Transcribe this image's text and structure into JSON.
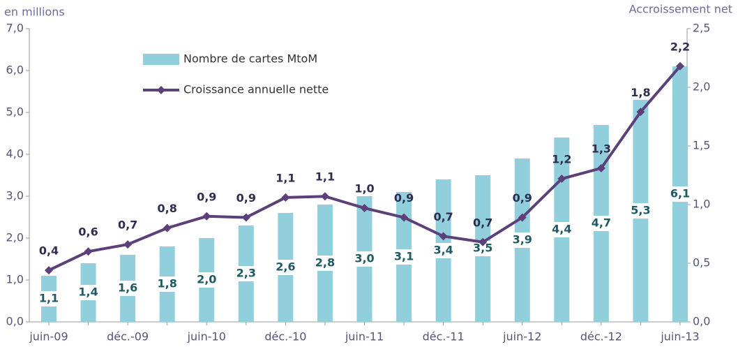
{
  "chart_data": {
    "type": "bar-line",
    "y_label": "en millions",
    "y2_label": "Accroissement net",
    "categories": [
      "juin-09",
      null,
      "déc.-09",
      null,
      "juin-10",
      null,
      "déc.-10",
      null,
      "juin-11",
      null,
      "déc.-11",
      null,
      "juin-12",
      null,
      "déc.-12",
      null,
      "juin-13"
    ],
    "series": [
      {
        "name": "Nombre de cartes MtoM",
        "type": "bar",
        "color": "#92cfdd",
        "values": [
          1.1,
          1.4,
          1.6,
          1.8,
          2.0,
          2.3,
          2.6,
          2.8,
          3.0,
          3.1,
          3.4,
          3.5,
          3.9,
          4.4,
          4.7,
          5.3,
          6.1
        ],
        "value_labels": [
          "1,1",
          "1,4",
          "1,6",
          "1,8",
          "2,0",
          "2,3",
          "2,6",
          "2,8",
          "3,0",
          "3,1",
          "3,4",
          "3,5",
          "3,9",
          "4,4",
          "4,7",
          "5,3",
          "6,1"
        ]
      },
      {
        "name": "Croissance annuelle nette",
        "type": "line",
        "axis": "y2",
        "color": "#5c4079",
        "values": [
          0.44,
          0.6,
          0.66,
          0.8,
          0.9,
          0.89,
          1.06,
          1.07,
          0.97,
          0.89,
          0.73,
          0.68,
          0.89,
          1.22,
          1.31,
          1.79,
          2.18
        ],
        "value_labels": [
          "0,4",
          "0,6",
          "0,7",
          "0,8",
          "0,9",
          "0,9",
          "1,1",
          "1,1",
          "1,0",
          "0,9",
          "0,7",
          "0,7",
          "0,9",
          "1,2",
          "1,3",
          "1,8",
          "2,2"
        ]
      }
    ],
    "ylim": [
      0,
      7
    ],
    "yticks": [
      {
        "value": 0,
        "label": "0,0"
      },
      {
        "value": 1,
        "label": "1,0"
      },
      {
        "value": 2,
        "label": "2,0"
      },
      {
        "value": 3,
        "label": "3,0"
      },
      {
        "value": 4,
        "label": "4,0"
      },
      {
        "value": 5,
        "label": "5,0"
      },
      {
        "value": 6,
        "label": "6,0"
      },
      {
        "value": 7,
        "label": "7,0"
      }
    ],
    "y2lim": [
      0,
      2.5
    ],
    "y2ticks": [
      {
        "value": 0,
        "label": "0,0"
      },
      {
        "value": 0.5,
        "label": "0,5"
      },
      {
        "value": 1,
        "label": "1,0"
      },
      {
        "value": 1.5,
        "label": "1,5"
      },
      {
        "value": 2,
        "label": "2,0"
      },
      {
        "value": 2.5,
        "label": "2,5"
      }
    ]
  }
}
